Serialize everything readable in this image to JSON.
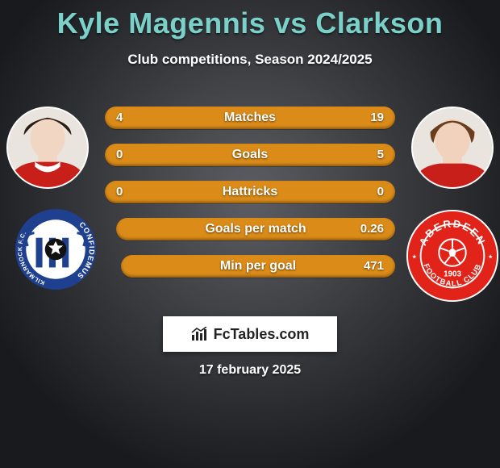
{
  "background": {
    "gradient_inner": "#5c5e63",
    "gradient_outer": "#191a1d"
  },
  "title": {
    "text": "Kyle Magennis vs Clarkson",
    "color": "#79d1c9",
    "fontsize": 36,
    "fontweight": 800
  },
  "subtitle": {
    "text": "Club competitions, Season 2024/2025",
    "color": "#ffffff",
    "fontsize": 17
  },
  "players": {
    "left": {
      "name": "Kyle Magennis",
      "avatar_border": "#ffffff",
      "avatar_bg": "#e9e4de"
    },
    "right": {
      "name": "Clarkson",
      "avatar_border": "#ffffff",
      "avatar_bg": "#e9e4de"
    }
  },
  "clubs": {
    "left": {
      "name": "Kilmarnock FC",
      "motto": "CONFIDEMUS",
      "ring_color": "#1f3f8f",
      "ring_text_color": "#ffffff",
      "inner_bg": "#ffffff",
      "stripe1": "#1f3f8f",
      "stripe2": "#ffffff",
      "ball_color": "#111111"
    },
    "right": {
      "name": "Aberdeen Football Club",
      "text_top": "ABERDEEN",
      "text_bottom": "FOOTBALL CLUB",
      "year": "1903",
      "bg": "#e1231a",
      "outline": "#ffffff",
      "ball_color": "#ffffff"
    }
  },
  "bars": {
    "height": 28,
    "radius": 14,
    "gap": 18,
    "color": "#da8b18",
    "label_color": "#ffffff",
    "value_color": "#ffffff",
    "label_fontsize": 16,
    "value_fontsize": 15,
    "rows": [
      {
        "label": "Matches",
        "left": "4",
        "right": "19"
      },
      {
        "label": "Goals",
        "left": "0",
        "right": "5"
      },
      {
        "label": "Hattricks",
        "left": "0",
        "right": "0"
      },
      {
        "label": "Goals per match",
        "left": "",
        "right": "0.26"
      },
      {
        "label": "Min per goal",
        "left": "",
        "right": "471"
      }
    ],
    "row_left_offsets": [
      0,
      0,
      0,
      14,
      20
    ]
  },
  "watermark": {
    "text": "FcTables.com",
    "bg": "#ffffff",
    "text_color": "#222222",
    "fontsize": 18
  },
  "date": {
    "text": "17 february 2025",
    "color": "#ffffff",
    "fontsize": 16
  }
}
